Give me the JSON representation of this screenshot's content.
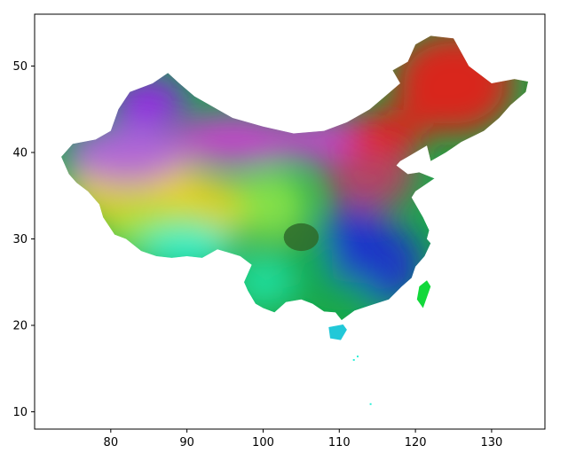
{
  "chart_data": {
    "type": "heatmap",
    "title": "",
    "xlabel": "",
    "ylabel": "",
    "xlim": [
      70,
      137
    ],
    "ylim": [
      8,
      56
    ],
    "x_ticks": [
      80,
      90,
      100,
      110,
      120,
      130
    ],
    "y_ticks": [
      10,
      20,
      30,
      40,
      50
    ],
    "x_tick_labels": [
      "80",
      "90",
      "100",
      "110",
      "120",
      "130"
    ],
    "y_tick_labels": [
      "10",
      "20",
      "30",
      "40",
      "50"
    ],
    "grid": false,
    "legend": "none",
    "description_colors": {
      "northeast": "#ee1a1a",
      "north_plain": "#c23b66",
      "inner_mongolia": "#d63bd8",
      "dzungaria": "#a01ff0",
      "tarim": "#b45ce8",
      "tibet_north": "#f0d21e",
      "tibet_south": "#8fe64a",
      "himalaya_south": "#2ef0d8",
      "yunnan": "#22e6a8",
      "sichuan_basin": "#2e6b2a",
      "southeast": "#1f2fd0",
      "south": "#1aa84a",
      "taiwan": "#12d83a",
      "hainan": "#22c8d8",
      "outline": "#808080"
    }
  }
}
